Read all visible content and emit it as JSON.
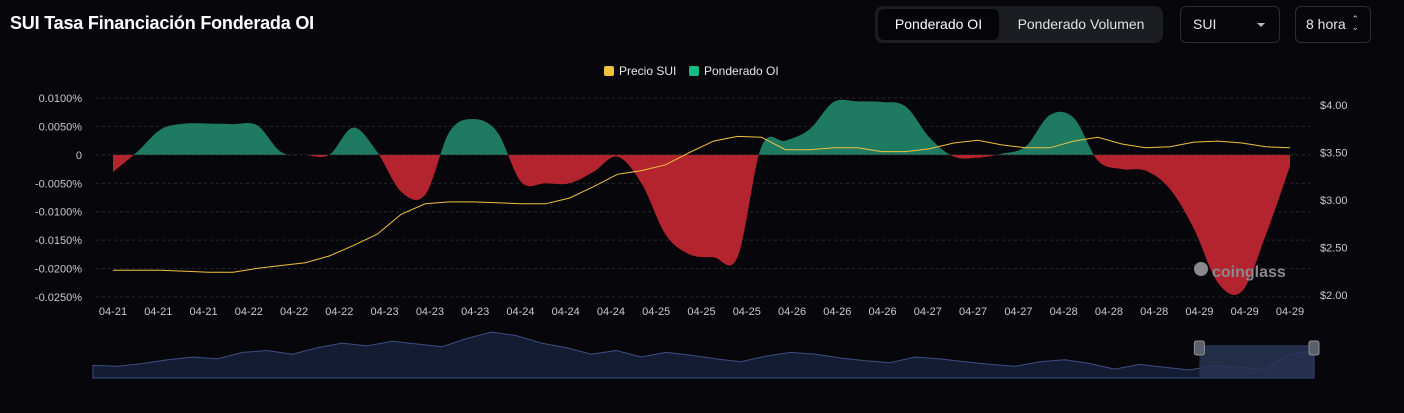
{
  "header": {
    "title": "SUI Tasa Financiación Fonderada OI",
    "toggle": {
      "active": "Ponderado OI",
      "inactive": "Ponderado Volumen"
    },
    "symbol_select": "SUI",
    "interval_select": "8 hora",
    "interval_arrows": "⌃⌄"
  },
  "watermark": "coinglass",
  "colors": {
    "price_line": "#f0c040",
    "positive_fill": "#1f7a62",
    "negative_fill": "#b3242f",
    "grid": "#2a2a2e",
    "navigator_fill": "#141c33",
    "navigator_line": "#3e4e82",
    "navigator_window": "#273454"
  },
  "chart_data": {
    "type": "area",
    "legend": [
      {
        "name": "Precio SUI",
        "color": "#f0c040"
      },
      {
        "name": "Ponderado OI",
        "color": "#19b983"
      }
    ],
    "legend_position": "top-center",
    "x_tick_labels": [
      "04-21",
      "04-21",
      "04-21",
      "04-22",
      "04-22",
      "04-22",
      "04-23",
      "04-23",
      "04-23",
      "04-24",
      "04-24",
      "04-24",
      "04-25",
      "04-25",
      "04-25",
      "04-26",
      "04-26",
      "04-26",
      "04-27",
      "04-27",
      "04-27",
      "04-28",
      "04-28",
      "04-28",
      "04-29",
      "04-29",
      "04-29"
    ],
    "y_left": {
      "ticks": [
        "0.0100%",
        "0.0050%",
        "0",
        "-0.0050%",
        "-0.0100%",
        "-0.0150%",
        "-0.0200%",
        "-0.0250%"
      ],
      "min": -0.025,
      "max": 0.01,
      "unit": "%"
    },
    "y_right": {
      "ticks": [
        "$4.00",
        "$3.50",
        "$3.00",
        "$2.50",
        "$2.00"
      ],
      "min": 2.0,
      "max": 4.0,
      "unit": "$"
    },
    "grid": true,
    "series": [
      {
        "name": "Ponderado OI",
        "values": [
          -0.003,
          0.0005,
          0.0045,
          0.0055,
          0.0055,
          0.0054,
          0.0052,
          0.0005,
          0,
          0,
          0.0048,
          0.0005,
          -0.0065,
          -0.007,
          0.004,
          0.0063,
          0.004,
          -0.0048,
          -0.005,
          -0.005,
          -0.003,
          -0.0003,
          -0.005,
          -0.014,
          -0.0175,
          -0.018,
          -0.018,
          0.0015,
          0.0025,
          0.0045,
          0.0093,
          0.0094,
          0.0093,
          0.0085,
          0.003,
          -0.0003,
          -0.0005,
          0.0002,
          0.0015,
          0.007,
          0.0065,
          -0.001,
          -0.0025,
          -0.0028,
          -0.006,
          -0.013,
          -0.0225,
          -0.024,
          -0.014,
          -0.002
        ]
      },
      {
        "name": "Precio SUI",
        "values": [
          2.26,
          2.26,
          2.26,
          2.25,
          2.24,
          2.24,
          2.28,
          2.31,
          2.34,
          2.41,
          2.52,
          2.64,
          2.85,
          2.96,
          2.98,
          2.98,
          2.97,
          2.96,
          2.96,
          3.02,
          3.14,
          3.27,
          3.31,
          3.37,
          3.5,
          3.62,
          3.67,
          3.66,
          3.53,
          3.53,
          3.55,
          3.55,
          3.51,
          3.51,
          3.54,
          3.6,
          3.63,
          3.58,
          3.55,
          3.55,
          3.62,
          3.66,
          3.59,
          3.55,
          3.56,
          3.61,
          3.62,
          3.6,
          3.56,
          3.55
        ]
      }
    ],
    "navigator": {
      "values": [
        2.26,
        2.25,
        2.28,
        2.32,
        2.35,
        2.33,
        2.4,
        2.42,
        2.38,
        2.45,
        2.5,
        2.47,
        2.52,
        2.49,
        2.46,
        2.55,
        2.62,
        2.58,
        2.5,
        2.45,
        2.38,
        2.42,
        2.35,
        2.4,
        2.37,
        2.33,
        2.3,
        2.36,
        2.4,
        2.38,
        2.34,
        2.31,
        2.29,
        2.35,
        2.33,
        2.3,
        2.27,
        2.25,
        2.3,
        2.32,
        2.28,
        2.22,
        2.27,
        2.24,
        2.21,
        2.26,
        2.24,
        2.22,
        2.38,
        2.42
      ],
      "window_start": 0.952,
      "window_end": 1.0
    }
  }
}
